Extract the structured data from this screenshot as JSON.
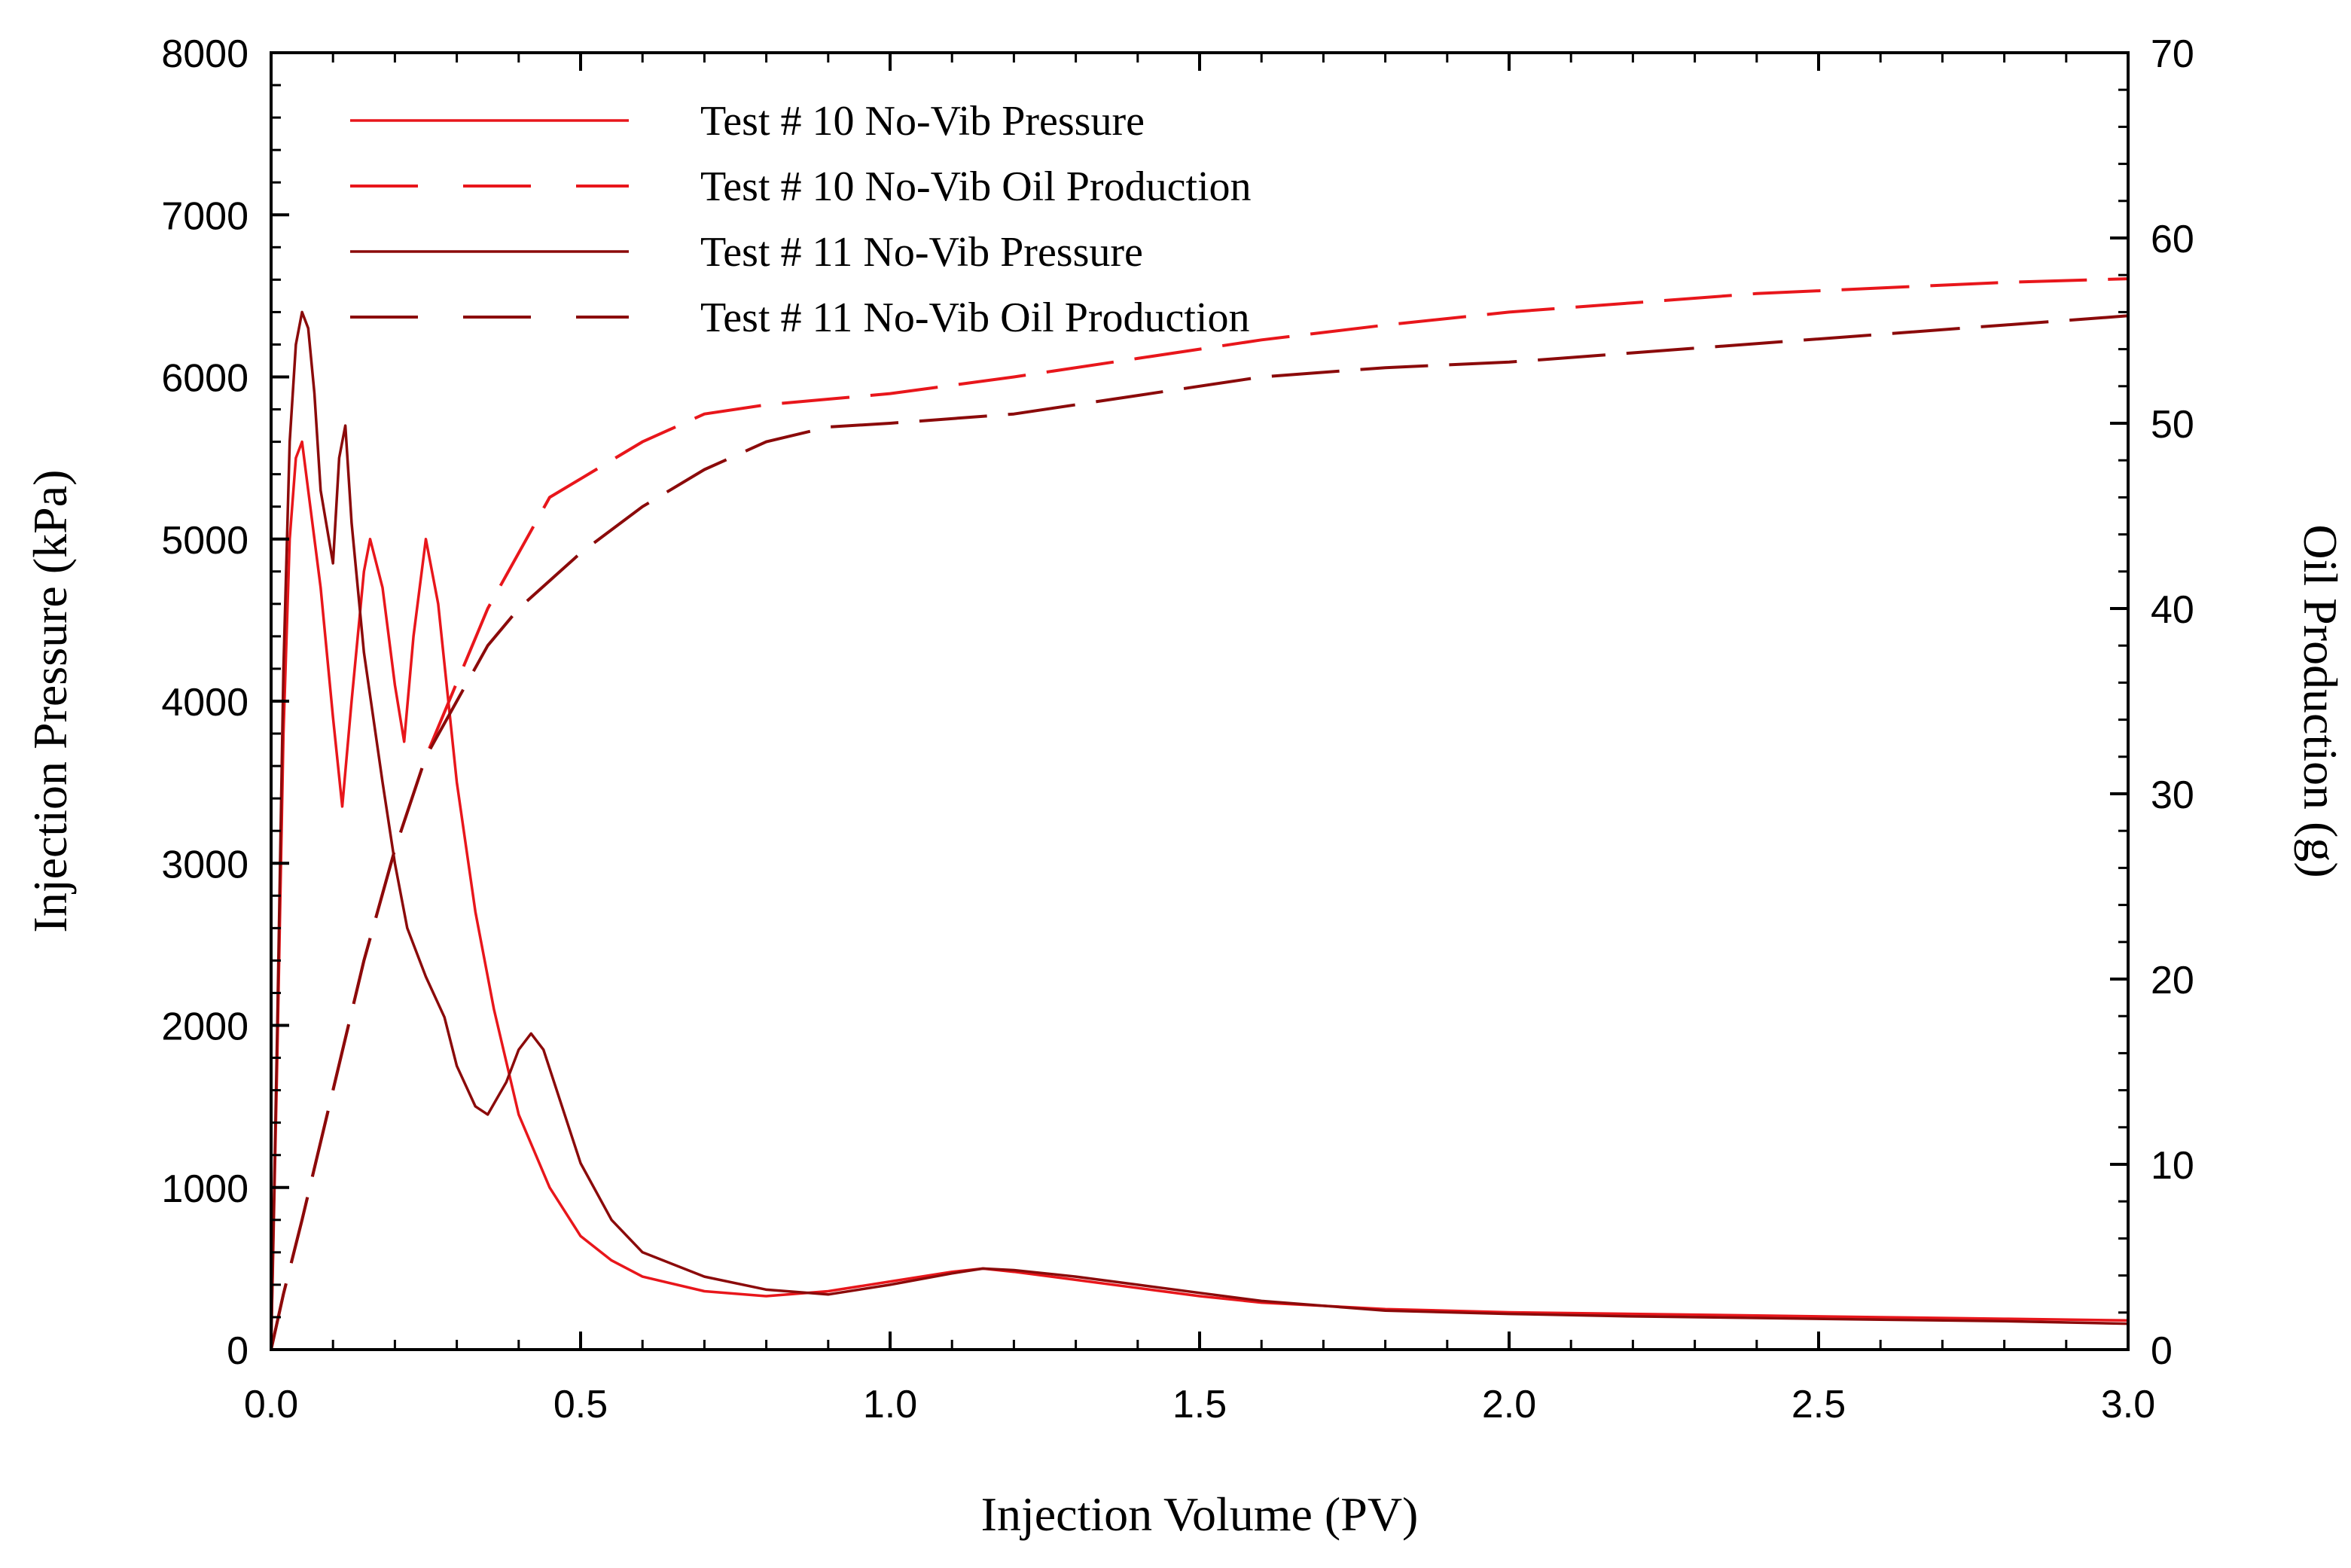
{
  "chart_data": {
    "type": "line",
    "title": "",
    "xlabel": "Injection Volume (PV)",
    "ylabel_left": "Injection Pressure (kPa)",
    "ylabel_right": "Oil Production (g)",
    "xlim": [
      0,
      3
    ],
    "ylim_left": [
      0,
      8000
    ],
    "ylim_right": [
      0,
      70
    ],
    "x_ticks": [
      0,
      0.5,
      1,
      1.5,
      2,
      2.5,
      3
    ],
    "x_tick_labels": [
      "0.0",
      "0.5",
      "1.0",
      "1.5",
      "2.0",
      "2.5",
      "3.0"
    ],
    "y_left_ticks": [
      0,
      1000,
      2000,
      3000,
      4000,
      5000,
      6000,
      7000,
      8000
    ],
    "y_left_tick_labels": [
      "0",
      "1000",
      "2000",
      "3000",
      "4000",
      "5000",
      "6000",
      "7000",
      "8000"
    ],
    "y_right_ticks": [
      0,
      10,
      20,
      30,
      40,
      50,
      60,
      70
    ],
    "y_right_tick_labels": [
      "0",
      "10",
      "20",
      "30",
      "40",
      "50",
      "60",
      "70"
    ],
    "grid": false,
    "legend_position": "top-left",
    "series": [
      {
        "name": "Test # 10 No-Vib Pressure",
        "axis": "left",
        "color": "#e8161b",
        "dash": "solid",
        "x": [
          0,
          0.01,
          0.02,
          0.03,
          0.04,
          0.05,
          0.06,
          0.08,
          0.1,
          0.115,
          0.13,
          0.15,
          0.16,
          0.18,
          0.2,
          0.215,
          0.23,
          0.25,
          0.27,
          0.3,
          0.33,
          0.36,
          0.4,
          0.45,
          0.5,
          0.55,
          0.6,
          0.7,
          0.8,
          0.9,
          1.0,
          1.1,
          1.15,
          1.2,
          1.3,
          1.4,
          1.5,
          1.6,
          1.8,
          2.0,
          2.2,
          2.4,
          2.6,
          2.8,
          3.0
        ],
        "y": [
          0,
          1800,
          3800,
          5000,
          5500,
          5600,
          5300,
          4700,
          3900,
          3350,
          4000,
          4800,
          5000,
          4700,
          4100,
          3750,
          4400,
          5000,
          4600,
          3500,
          2700,
          2100,
          1450,
          1000,
          700,
          550,
          450,
          360,
          330,
          360,
          420,
          480,
          500,
          480,
          430,
          380,
          330,
          290,
          250,
          230,
          220,
          210,
          200,
          190,
          180
        ]
      },
      {
        "name": "Test # 10 No-Vib Oil Production",
        "axis": "right",
        "color": "#e8161b",
        "dash": "dashed",
        "x": [
          0,
          0.02,
          0.05,
          0.1,
          0.15,
          0.2,
          0.25,
          0.3,
          0.35,
          0.4,
          0.45,
          0.5,
          0.6,
          0.7,
          0.8,
          0.9,
          1.0,
          1.2,
          1.4,
          1.6,
          1.8,
          2.0,
          2.2,
          2.4,
          2.6,
          2.8,
          3.0
        ],
        "y": [
          0,
          3,
          7,
          14,
          21,
          27,
          32,
          36,
          40,
          43,
          46,
          47,
          49,
          50.5,
          51,
          51.3,
          51.6,
          52.5,
          53.5,
          54.5,
          55.3,
          56,
          56.5,
          57,
          57.3,
          57.6,
          57.8
        ]
      },
      {
        "name": "Test # 11 No-Vib Pressure",
        "axis": "left",
        "color": "#8b0a0a",
        "dash": "solid",
        "x": [
          0,
          0.01,
          0.02,
          0.03,
          0.04,
          0.05,
          0.06,
          0.07,
          0.08,
          0.1,
          0.11,
          0.12,
          0.13,
          0.15,
          0.18,
          0.2,
          0.22,
          0.25,
          0.28,
          0.3,
          0.33,
          0.35,
          0.38,
          0.4,
          0.42,
          0.44,
          0.47,
          0.5,
          0.55,
          0.6,
          0.7,
          0.8,
          0.9,
          1.0,
          1.1,
          1.15,
          1.2,
          1.3,
          1.4,
          1.5,
          1.6,
          1.8,
          2.0,
          2.2,
          2.4,
          2.6,
          2.8,
          3.0
        ],
        "y": [
          0,
          2000,
          4200,
          5600,
          6200,
          6400,
          6300,
          5900,
          5300,
          4850,
          5500,
          5700,
          5100,
          4300,
          3500,
          3000,
          2600,
          2300,
          2050,
          1750,
          1500,
          1450,
          1650,
          1850,
          1950,
          1850,
          1500,
          1150,
          800,
          600,
          450,
          370,
          340,
          400,
          470,
          500,
          490,
          450,
          400,
          350,
          300,
          240,
          220,
          205,
          195,
          185,
          175,
          160
        ]
      },
      {
        "name": "Test # 11 No-Vib Oil Production",
        "axis": "right",
        "color": "#8b0a0a",
        "dash": "dashed",
        "x": [
          0,
          0.02,
          0.05,
          0.1,
          0.15,
          0.2,
          0.25,
          0.3,
          0.35,
          0.4,
          0.45,
          0.5,
          0.6,
          0.7,
          0.8,
          0.9,
          1.0,
          1.2,
          1.4,
          1.6,
          1.8,
          2.0,
          2.2,
          2.4,
          2.6,
          2.8,
          3.0
        ],
        "y": [
          0,
          3,
          7,
          14,
          21,
          27,
          32,
          35,
          38,
          40,
          41.5,
          43,
          45.5,
          47.5,
          49,
          49.8,
          50,
          50.5,
          51.5,
          52.5,
          53,
          53.3,
          53.8,
          54.3,
          54.8,
          55.3,
          55.8
        ]
      }
    ]
  }
}
